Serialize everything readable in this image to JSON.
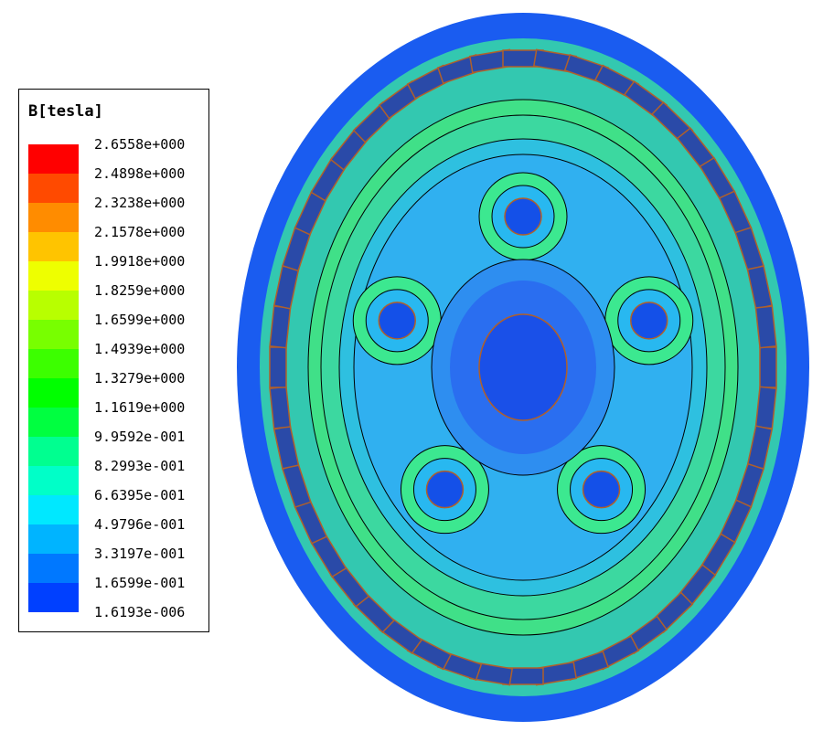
{
  "legend": {
    "title": "B[tesla]",
    "labels": [
      "2.6558e+000",
      "2.4898e+000",
      "2.3238e+000",
      "2.1578e+000",
      "1.9918e+000",
      "1.8259e+000",
      "1.6599e+000",
      "1.4939e+000",
      "1.3279e+000",
      "1.1619e+000",
      "9.9592e-001",
      "8.2993e-001",
      "6.6395e-001",
      "4.9796e-001",
      "3.3197e-001",
      "1.6599e-001",
      "1.6193e-006"
    ],
    "colors": [
      "#ff0000",
      "#ff4a00",
      "#ff8c00",
      "#ffc400",
      "#eeff00",
      "#b8ff00",
      "#78ff00",
      "#3cff00",
      "#00ff00",
      "#00ff40",
      "#00ff90",
      "#00ffc8",
      "#00e8ff",
      "#00b4ff",
      "#0078ff",
      "#0040ff"
    ]
  }
}
